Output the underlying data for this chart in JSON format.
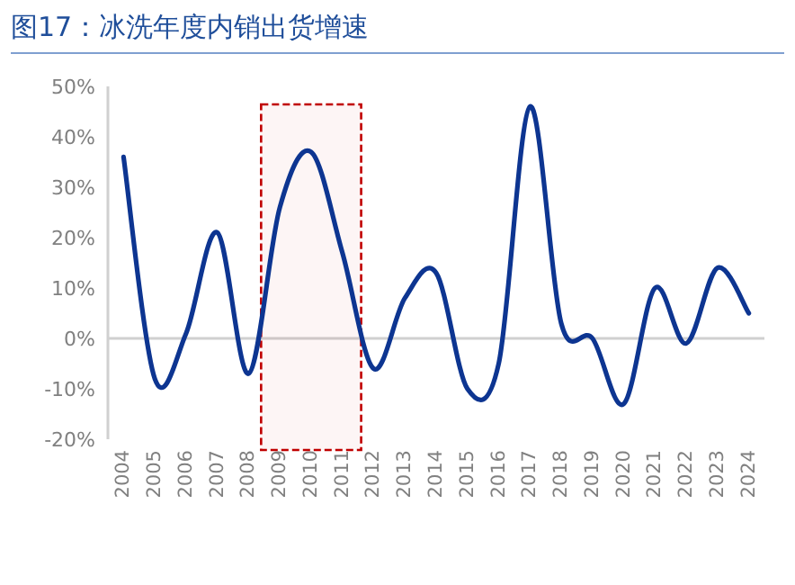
{
  "chart_data": {
    "type": "line",
    "title": "图17：冰洗年度内销出货增速",
    "x": [
      2004,
      2005,
      2006,
      2007,
      2008,
      2009,
      2010,
      2011,
      2012,
      2013,
      2014,
      2015,
      2016,
      2017,
      2018,
      2019,
      2020,
      2021,
      2022,
      2023,
      2024
    ],
    "series": [
      {
        "color": "#0d3591",
        "values": [
          36,
          -8,
          1,
          21,
          -7,
          26,
          37,
          17,
          -6,
          8,
          13,
          -10,
          -5,
          46,
          3,
          0,
          -13,
          10,
          -1,
          14,
          5
        ]
      }
    ],
    "xlim": [
      2003.5,
      2024.5
    ],
    "xticks": [
      2004,
      2005,
      2006,
      2007,
      2008,
      2009,
      2010,
      2011,
      2012,
      2013,
      2014,
      2015,
      2016,
      2017,
      2018,
      2019,
      2020,
      2021,
      2022,
      2023,
      2024
    ],
    "ylim": [
      -20,
      50
    ],
    "yticks": [
      {
        "value": -20,
        "label": "-20%"
      },
      {
        "value": -10,
        "label": "-10%"
      },
      {
        "value": 0,
        "label": "0%"
      },
      {
        "value": 10,
        "label": "10%"
      },
      {
        "value": 20,
        "label": "20%"
      },
      {
        "value": 30,
        "label": "30%"
      },
      {
        "value": 40,
        "label": "40%"
      },
      {
        "value": 50,
        "label": "50%"
      }
    ],
    "bands": [
      {
        "axis": "x",
        "from": 2008.4,
        "to": 2011.6,
        "color": "#c00000"
      }
    ],
    "marker": "none",
    "line_style": "solid"
  }
}
